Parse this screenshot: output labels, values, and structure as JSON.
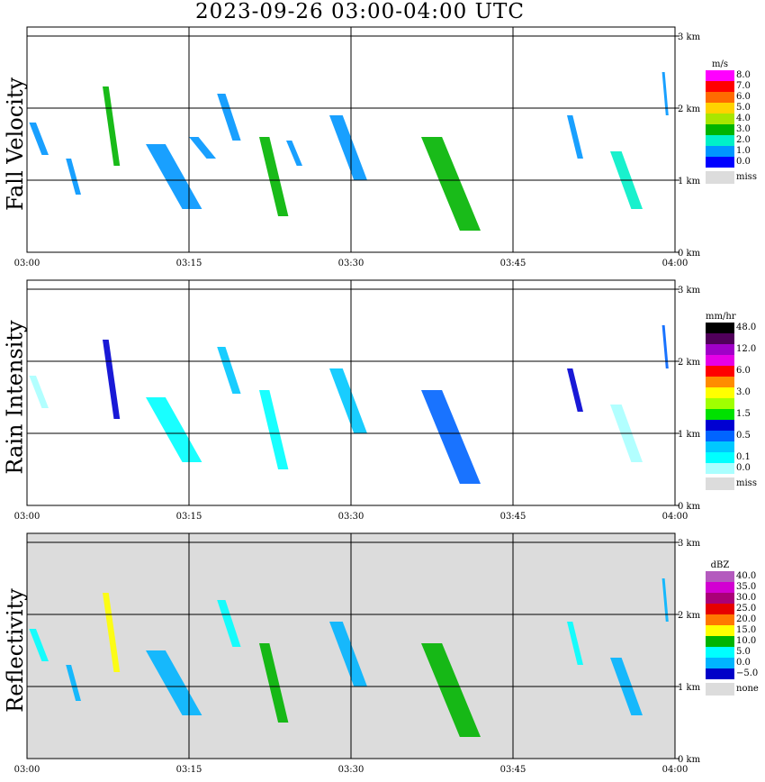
{
  "title": "2023-09-26   03:00-04:00 UTC",
  "x_ticks": [
    "03:00",
    "03:15",
    "03:30",
    "03:45",
    "04:00"
  ],
  "y_ticks": [
    "0 km",
    "1 km",
    "2 km",
    "3 km"
  ],
  "chart_data": [
    {
      "type": "heatmap",
      "panel": "Fall Velocity",
      "ylabel": "Fall Velocity",
      "xlim": [
        "03:00",
        "04:00"
      ],
      "ylim_km": [
        0,
        3.2
      ],
      "grid": true,
      "legend_unit": "m/s",
      "legend": [
        {
          "label": "8.0",
          "color": "#ff00ff"
        },
        {
          "label": "7.0",
          "color": "#ff0000"
        },
        {
          "label": "6.0",
          "color": "#ff6a00"
        },
        {
          "label": "5.0",
          "color": "#ffd200"
        },
        {
          "label": "4.0",
          "color": "#a8e600"
        },
        {
          "label": "3.0",
          "color": "#00b400"
        },
        {
          "label": "2.0",
          "color": "#00f0c8"
        },
        {
          "label": "1.0",
          "color": "#0096ff"
        },
        {
          "label": "0.0",
          "color": "#0000ff"
        }
      ],
      "missing_label": "miss",
      "missing_color": "#dcdcdc",
      "background": "#ffffff",
      "echoes": [
        {
          "t0": 0.2,
          "t1": 2.0,
          "z0": 1.35,
          "z1": 1.8,
          "v": "#0096ff"
        },
        {
          "t0": 3.6,
          "t1": 5.0,
          "z0": 0.8,
          "z1": 1.3,
          "v": "#0096ff"
        },
        {
          "t0": 7.0,
          "t1": 8.6,
          "z0": 1.2,
          "z1": 2.3,
          "v": "#00b400"
        },
        {
          "t0": 11.0,
          "t1": 16.2,
          "z0": 0.6,
          "z1": 1.5,
          "v": "#0096ff"
        },
        {
          "t0": 15.0,
          "t1": 17.5,
          "z0": 1.3,
          "z1": 1.6,
          "v": "#0096ff"
        },
        {
          "t0": 17.6,
          "t1": 19.8,
          "z0": 1.55,
          "z1": 2.2,
          "v": "#0096ff"
        },
        {
          "t0": 21.5,
          "t1": 24.2,
          "z0": 0.5,
          "z1": 1.6,
          "v": "#00b400"
        },
        {
          "t0": 24.0,
          "t1": 25.5,
          "z0": 1.2,
          "z1": 1.55,
          "v": "#0096ff"
        },
        {
          "t0": 28.0,
          "t1": 31.5,
          "z0": 1.0,
          "z1": 1.9,
          "v": "#0096ff"
        },
        {
          "t0": 36.5,
          "t1": 42.0,
          "z0": 0.3,
          "z1": 1.6,
          "v": "#00b400"
        },
        {
          "t0": 50.0,
          "t1": 51.5,
          "z0": 1.3,
          "z1": 1.9,
          "v": "#0096ff"
        },
        {
          "t0": 54.0,
          "t1": 57.0,
          "z0": 0.6,
          "z1": 1.4,
          "v": "#00f0c8"
        },
        {
          "t0": 58.8,
          "t1": 59.4,
          "z0": 1.9,
          "z1": 2.5,
          "v": "#0096ff"
        }
      ]
    },
    {
      "type": "heatmap",
      "panel": "Rain Intensity",
      "ylabel": "Rain Intensity",
      "xlim": [
        "03:00",
        "04:00"
      ],
      "ylim_km": [
        0,
        3.2
      ],
      "grid": true,
      "legend_unit": "mm/hr",
      "legend": [
        {
          "label": "48.0",
          "color": "#000000"
        },
        {
          "label": "",
          "color": "#50005a"
        },
        {
          "label": "12.0",
          "color": "#a000c8"
        },
        {
          "label": "",
          "color": "#e600e6"
        },
        {
          "label": "6.0",
          "color": "#ff0000"
        },
        {
          "label": "",
          "color": "#ff8c00"
        },
        {
          "label": "3.0",
          "color": "#ffff00"
        },
        {
          "label": "",
          "color": "#a0ff00"
        },
        {
          "label": "1.5",
          "color": "#00e100"
        },
        {
          "label": "",
          "color": "#0000d2"
        },
        {
          "label": "0.5",
          "color": "#0064ff"
        },
        {
          "label": "",
          "color": "#00c8ff"
        },
        {
          "label": "0.1",
          "color": "#00ffff"
        },
        {
          "label": "0.0",
          "color": "#aaffff"
        }
      ],
      "missing_label": "miss",
      "missing_color": "#dcdcdc",
      "background": "#ffffff",
      "echoes": [
        {
          "t0": 0.2,
          "t1": 2.0,
          "z0": 1.35,
          "z1": 1.8,
          "v": "#aaffff"
        },
        {
          "t0": 7.0,
          "t1": 8.6,
          "z0": 1.2,
          "z1": 2.3,
          "v": "#0000d2"
        },
        {
          "t0": 11.0,
          "t1": 16.2,
          "z0": 0.6,
          "z1": 1.5,
          "v": "#00ffff"
        },
        {
          "t0": 17.6,
          "t1": 19.8,
          "z0": 1.55,
          "z1": 2.2,
          "v": "#00c8ff"
        },
        {
          "t0": 21.5,
          "t1": 24.2,
          "z0": 0.5,
          "z1": 1.6,
          "v": "#00ffff"
        },
        {
          "t0": 28.0,
          "t1": 31.5,
          "z0": 1.0,
          "z1": 1.9,
          "v": "#00c8ff"
        },
        {
          "t0": 36.5,
          "t1": 42.0,
          "z0": 0.3,
          "z1": 1.6,
          "v": "#0064ff"
        },
        {
          "t0": 50.0,
          "t1": 51.5,
          "z0": 1.3,
          "z1": 1.9,
          "v": "#0000d2"
        },
        {
          "t0": 54.0,
          "t1": 57.0,
          "z0": 0.6,
          "z1": 1.4,
          "v": "#aaffff"
        },
        {
          "t0": 58.8,
          "t1": 59.4,
          "z0": 1.9,
          "z1": 2.5,
          "v": "#0064ff"
        }
      ]
    },
    {
      "type": "heatmap",
      "panel": "Reflectivity",
      "ylabel": "Reflectivity",
      "xlim": [
        "03:00",
        "04:00"
      ],
      "ylim_km": [
        0,
        3.2
      ],
      "grid": true,
      "legend_unit": "dBZ",
      "legend": [
        {
          "label": "40.0",
          "color": "#b45abe"
        },
        {
          "label": "35.0",
          "color": "#d200d2"
        },
        {
          "label": "30.0",
          "color": "#aa0078"
        },
        {
          "label": "25.0",
          "color": "#e60000"
        },
        {
          "label": "20.0",
          "color": "#ff7800"
        },
        {
          "label": "15.0",
          "color": "#ffff00"
        },
        {
          "label": "10.0",
          "color": "#00b400"
        },
        {
          "label": "5.0",
          "color": "#00ffff"
        },
        {
          "label": "0.0",
          "color": "#00b4ff"
        },
        {
          "label": "−5.0",
          "color": "#0000c8"
        }
      ],
      "missing_label": "none",
      "missing_color": "#dcdcdc",
      "background": "#dcdcdc",
      "echoes": [
        {
          "t0": 0.2,
          "t1": 2.0,
          "z0": 1.35,
          "z1": 1.8,
          "v": "#00ffff"
        },
        {
          "t0": 3.6,
          "t1": 5.0,
          "z0": 0.8,
          "z1": 1.3,
          "v": "#00b4ff"
        },
        {
          "t0": 7.0,
          "t1": 8.6,
          "z0": 1.2,
          "z1": 2.3,
          "v": "#ffff00"
        },
        {
          "t0": 11.0,
          "t1": 16.2,
          "z0": 0.6,
          "z1": 1.5,
          "v": "#00b4ff"
        },
        {
          "t0": 17.6,
          "t1": 19.8,
          "z0": 1.55,
          "z1": 2.2,
          "v": "#00ffff"
        },
        {
          "t0": 21.5,
          "t1": 24.2,
          "z0": 0.5,
          "z1": 1.6,
          "v": "#00b400"
        },
        {
          "t0": 28.0,
          "t1": 31.5,
          "z0": 1.0,
          "z1": 1.9,
          "v": "#00b4ff"
        },
        {
          "t0": 36.5,
          "t1": 42.0,
          "z0": 0.3,
          "z1": 1.6,
          "v": "#00b400"
        },
        {
          "t0": 50.0,
          "t1": 51.5,
          "z0": 1.3,
          "z1": 1.9,
          "v": "#00ffff"
        },
        {
          "t0": 54.0,
          "t1": 57.0,
          "z0": 0.6,
          "z1": 1.4,
          "v": "#00b4ff"
        },
        {
          "t0": 58.8,
          "t1": 59.4,
          "z0": 1.9,
          "z1": 2.5,
          "v": "#00b4ff"
        }
      ]
    }
  ]
}
